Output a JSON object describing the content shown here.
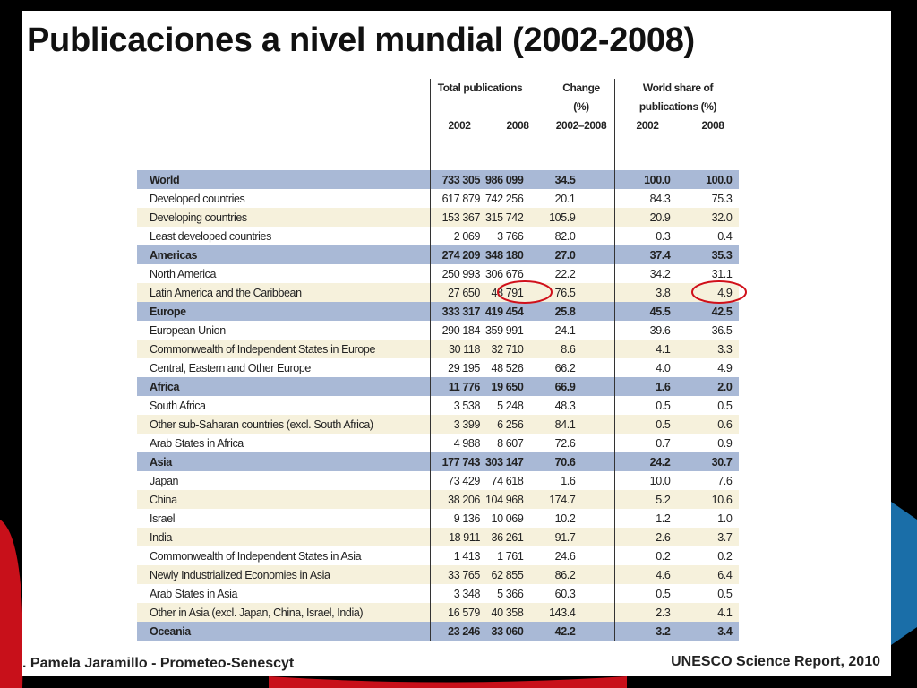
{
  "header": {
    "title": "Publicaciones a nivel mundial (2002-2008)"
  },
  "table": {
    "columns": {
      "total": "Total publications",
      "change": "Change (%)",
      "change_years": "2002–2008",
      "share": "World share of publications (%)",
      "years": [
        "2002",
        "2008",
        "2002",
        "2008"
      ]
    },
    "groups": [
      {
        "total": [
          "World",
          "733 305",
          "986 099",
          "34.5",
          "100.0",
          "100.0"
        ],
        "rows": [
          [
            "Developed countries",
            "617 879",
            "742 256",
            "20.1",
            "84.3",
            "75.3"
          ],
          [
            "Developing countries",
            "153 367",
            "315 742",
            "105.9",
            "20.9",
            "32.0"
          ],
          [
            "Least developed countries",
            "2 069",
            "3 766",
            "82.0",
            "0.3",
            "0.4"
          ]
        ]
      },
      {
        "total": [
          "Americas",
          "274 209",
          "348 180",
          "27.0",
          "37.4",
          "35.3"
        ],
        "rows": [
          [
            "North America",
            "250 993",
            "306 676",
            "22.2",
            "34.2",
            "31.1"
          ],
          [
            "Latin America and the Caribbean",
            "27 650",
            "48 791",
            "76.5",
            "3.8",
            "4.9"
          ]
        ]
      },
      {
        "total": [
          "Europe",
          "333 317",
          "419 454",
          "25.8",
          "45.5",
          "42.5"
        ],
        "rows": [
          [
            "European Union",
            "290 184",
            "359 991",
            "24.1",
            "39.6",
            "36.5"
          ],
          [
            "Commonwealth of Independent States in Europe",
            "30 118",
            "32 710",
            "8.6",
            "4.1",
            "3.3"
          ],
          [
            "Central, Eastern and Other Europe",
            "29 195",
            "48 526",
            "66.2",
            "4.0",
            "4.9"
          ]
        ]
      },
      {
        "total": [
          "Africa",
          "11 776",
          "19 650",
          "66.9",
          "1.6",
          "2.0"
        ],
        "rows": [
          [
            "South Africa",
            "3 538",
            "5 248",
            "48.3",
            "0.5",
            "0.5"
          ],
          [
            "Other sub-Saharan countries (excl. South Africa)",
            "3 399",
            "6 256",
            "84.1",
            "0.5",
            "0.6"
          ],
          [
            "Arab States in Africa",
            "4 988",
            "8 607",
            "72.6",
            "0.7",
            "0.9"
          ]
        ]
      },
      {
        "total": [
          "Asia",
          "177 743",
          "303 147",
          "70.6",
          "24.2",
          "30.7"
        ],
        "rows": [
          [
            "Japan",
            "73 429",
            "74 618",
            "1.6",
            "10.0",
            "7.6"
          ],
          [
            "China",
            "38 206",
            "104 968",
            "174.7",
            "5.2",
            "10.6"
          ],
          [
            "Israel",
            "9 136",
            "10 069",
            "10.2",
            "1.2",
            "1.0"
          ],
          [
            "India",
            "18 911",
            "36 261",
            "91.7",
            "2.6",
            "3.7"
          ],
          [
            "Commonwealth of Independent States in Asia",
            "1 413",
            "1 761",
            "24.6",
            "0.2",
            "0.2"
          ],
          [
            "Newly Industrialized Economies in Asia",
            "33 765",
            "62 855",
            "86.2",
            "4.6",
            "6.4"
          ],
          [
            "Arab States in Asia",
            "3 348",
            "5 366",
            "60.3",
            "0.5",
            "0.5"
          ],
          [
            "Other in Asia (excl. Japan, China, Israel, India)",
            "16 579",
            "40 358",
            "143.4",
            "2.3",
            "4.1"
          ]
        ]
      },
      {
        "total": [
          "Oceania",
          "23 246",
          "33 060",
          "42.2",
          "3.2",
          "3.4"
        ]
      }
    ]
  },
  "footer": {
    "left": ". Pamela Jaramillo - Prometeo-Senescyt",
    "right": "UNESCO Science Report, 2010"
  }
}
